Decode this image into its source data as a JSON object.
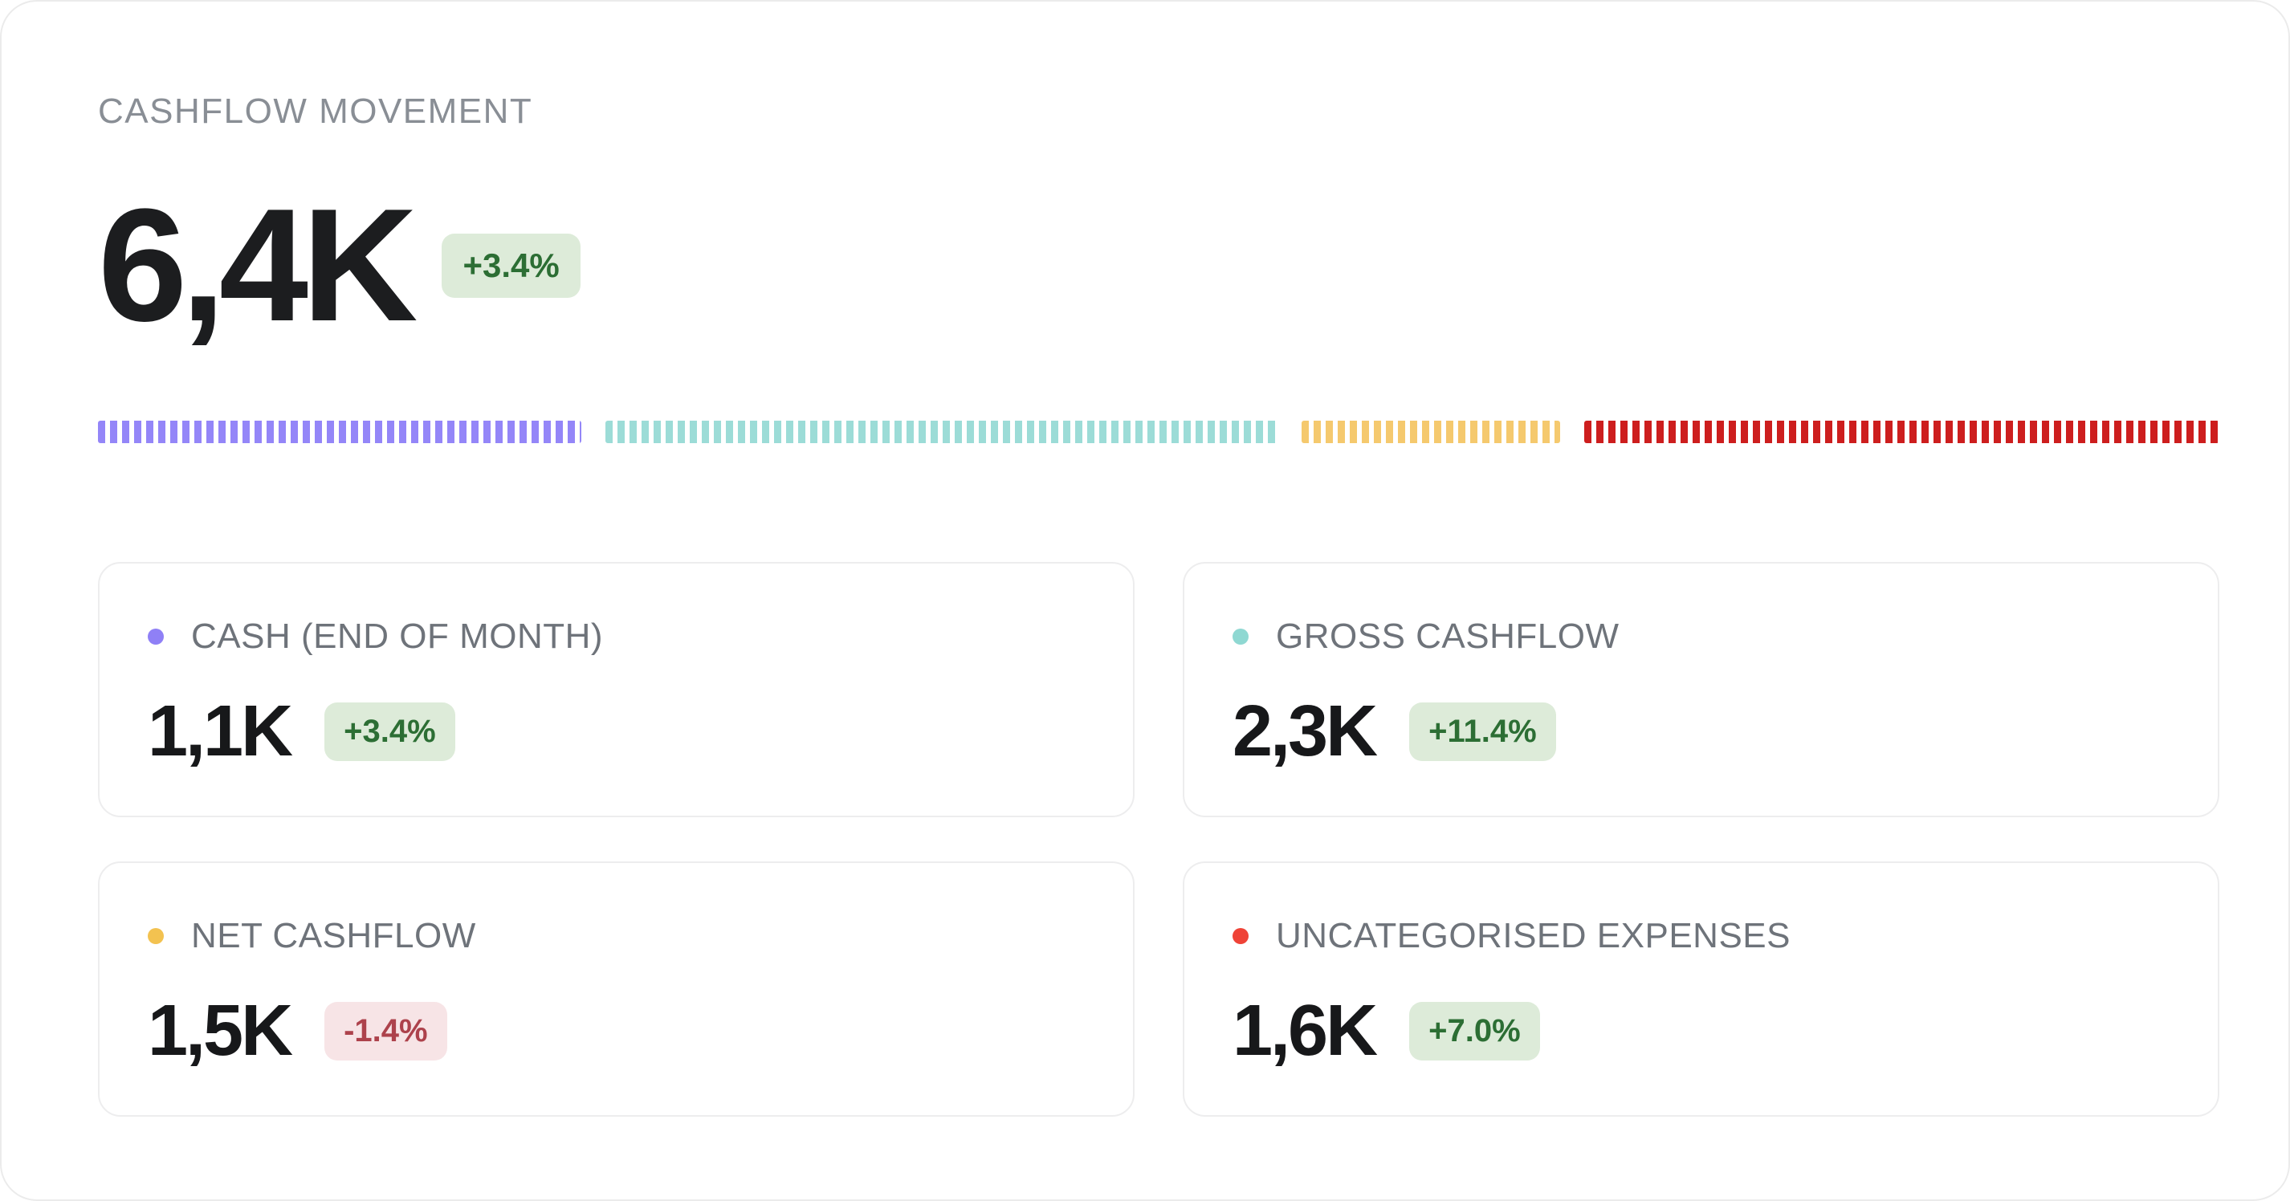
{
  "header": {
    "title": "CASHFLOW MOVEMENT",
    "value": "6,4K",
    "change": "+3.4%",
    "change_positive": true
  },
  "bar": {
    "segments": [
      {
        "label": "CASH (END OF MONTH)",
        "color": "#9486f8",
        "weight": 327
      },
      {
        "label": "GROSS CASHFLOW",
        "color": "#9cdcd7",
        "weight": 455
      },
      {
        "label": "NET CASHFLOW",
        "color": "#f5c96e",
        "weight": 175
      },
      {
        "label": "UNCATEGORISED EXPENSES",
        "color": "#cd1e1e",
        "weight": 430
      }
    ]
  },
  "metrics": [
    {
      "label": "CASH (END OF MONTH)",
      "dot_color": "#8f80f6",
      "value": "1,1K",
      "change": "+3.4%",
      "positive": true
    },
    {
      "label": "GROSS CASHFLOW",
      "dot_color": "#8fd8d2",
      "value": "2,3K",
      "change": "+11.4%",
      "positive": true
    },
    {
      "label": "NET CASHFLOW",
      "dot_color": "#f3c250",
      "value": "1,5K",
      "change": "-1.4%",
      "positive": false
    },
    {
      "label": "UNCATEGORISED EXPENSES",
      "dot_color": "#ef4337",
      "value": "1,6K",
      "change": "+7.0%",
      "positive": true
    }
  ],
  "colors": {
    "badge_positive_bg": "#ddebd9",
    "badge_positive_text": "#2c6e34",
    "badge_negative_bg": "#f7e4e6",
    "badge_negative_text": "#ad424c",
    "title_text": "#898e95",
    "value_text": "#1c1d1f",
    "card_border": "#ededee"
  },
  "chart_data": {
    "type": "bar",
    "title": "CASHFLOW MOVEMENT",
    "total": {
      "value_k": 6.4,
      "display": "6,4K",
      "change_pct": 3.4
    },
    "series": [
      {
        "name": "CASH (END OF MONTH)",
        "value_k": 1.1,
        "display": "1,1K",
        "change_pct": 3.4,
        "color": "#9486f8"
      },
      {
        "name": "GROSS CASHFLOW",
        "value_k": 2.3,
        "display": "2,3K",
        "change_pct": 11.4,
        "color": "#9cdcd7"
      },
      {
        "name": "NET CASHFLOW",
        "value_k": 1.5,
        "display": "1,5K",
        "change_pct": -1.4,
        "color": "#f5c96e"
      },
      {
        "name": "UNCATEGORISED EXPENSES",
        "value_k": 1.6,
        "display": "1,6K",
        "change_pct": 7.0,
        "color": "#cd1e1e"
      }
    ],
    "legend_position": "cards-below",
    "grid": false,
    "bar_style": "segmented-dashed-horizontal",
    "segment_width_ratio": [
      327,
      455,
      175,
      430
    ]
  }
}
